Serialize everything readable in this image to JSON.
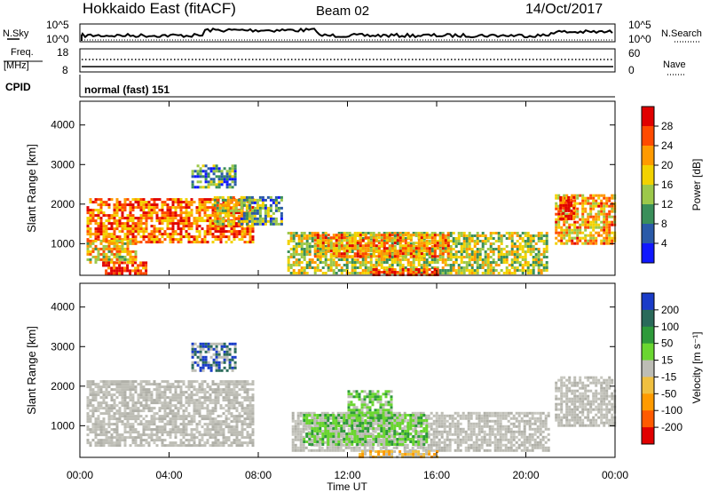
{
  "header": {
    "title": "Hokkaido East (fitACF)",
    "beam": "Beam 02",
    "date": "14/Oct/2017"
  },
  "top_panels": {
    "nsky_label": "N.Sky",
    "nsky_ticks": [
      "10^5",
      "10^0"
    ],
    "nsearch_label": "N.Search",
    "nsearch_ticks": [
      "10^5",
      "10^0"
    ],
    "freq_label": "Freq.",
    "freq_unit": "[MHz]",
    "freq_ticks": [
      "18",
      "8"
    ],
    "nave_label": "Nave",
    "nave_ticks": [
      "60",
      "0"
    ],
    "cpid_label": "CPID",
    "cpid_value": "normal (fast) 151"
  },
  "chart_data": [
    {
      "type": "heatmap",
      "panel": "power",
      "ylabel": "Slant Range [km]",
      "yticks": [
        "4000",
        "3000",
        "2000",
        "1000"
      ],
      "ylim": [
        200,
        4600
      ],
      "xlim": [
        0,
        24
      ],
      "colorbar": {
        "label": "Power [dB]",
        "ticks": [
          "28",
          "24",
          "20",
          "16",
          "12",
          "8",
          "4"
        ],
        "colors": [
          "#e00000",
          "#ff4a00",
          "#ff9a00",
          "#f2d200",
          "#9cc84a",
          "#3a8f5a",
          "#2a5aa8",
          "#1018ff"
        ]
      },
      "bands": [
        {
          "t": [
            0.3,
            7.8
          ],
          "r": [
            1050,
            2150
          ],
          "intensity": 0.75
        },
        {
          "t": [
            0.3,
            2.5
          ],
          "r": [
            500,
            1100
          ],
          "intensity": 0.6
        },
        {
          "t": [
            1.0,
            3.0
          ],
          "r": [
            250,
            550
          ],
          "intensity": 0.85
        },
        {
          "t": [
            6.0,
            7.2
          ],
          "r": [
            1500,
            2200
          ],
          "intensity": 0.55
        },
        {
          "t": [
            7.2,
            9.0
          ],
          "r": [
            1500,
            2200
          ],
          "intensity": 0.35
        },
        {
          "t": [
            9.3,
            21.0
          ],
          "r": [
            250,
            1300
          ],
          "intensity": 0.5
        },
        {
          "t": [
            10.5,
            16.5
          ],
          "r": [
            700,
            1250
          ],
          "intensity": 0.7
        },
        {
          "t": [
            13.0,
            16.0
          ],
          "r": [
            200,
            380
          ],
          "intensity": 0.9
        },
        {
          "t": [
            21.3,
            24.0
          ],
          "r": [
            1000,
            2250
          ],
          "intensity": 0.65
        },
        {
          "t": [
            21.5,
            22.2
          ],
          "r": [
            1600,
            2200
          ],
          "intensity": 0.9
        },
        {
          "t": [
            5.0,
            7.0
          ],
          "r": [
            2400,
            3000
          ],
          "intensity": 0.3
        }
      ]
    },
    {
      "type": "heatmap",
      "panel": "velocity",
      "xlabel": "Time UT",
      "ylabel": "Slant Range [km]",
      "yticks": [
        "4000",
        "3000",
        "2000",
        "1000"
      ],
      "xticks": [
        "00:00",
        "04:00",
        "08:00",
        "12:00",
        "16:00",
        "20:00",
        "00:00"
      ],
      "ylim": [
        200,
        4600
      ],
      "xlim": [
        0,
        24
      ],
      "colorbar": {
        "label": "Velocity [m s⁻¹]",
        "ticks": [
          "200",
          "100",
          "50",
          "15",
          "-15",
          "-50",
          "-100",
          "-200"
        ],
        "colors": [
          "#1a3cc8",
          "#2a6a5a",
          "#2e9a3a",
          "#6ad630",
          "#bdbdb5",
          "#f0c040",
          "#ff9a00",
          "#ff5a00",
          "#e00000"
        ]
      },
      "bands": [
        {
          "t": [
            0.3,
            7.8
          ],
          "r": [
            500,
            2150
          ],
          "vel": "gray"
        },
        {
          "t": [
            9.5,
            21.0
          ],
          "r": [
            400,
            1350
          ],
          "vel": "gray"
        },
        {
          "t": [
            10.0,
            15.5
          ],
          "r": [
            500,
            1300
          ],
          "vel": "green"
        },
        {
          "t": [
            12.0,
            14.0
          ],
          "r": [
            1200,
            1900
          ],
          "vel": "green"
        },
        {
          "t": [
            21.3,
            24.0
          ],
          "r": [
            1000,
            2250
          ],
          "vel": "gray"
        },
        {
          "t": [
            5.0,
            7.0
          ],
          "r": [
            2400,
            3100
          ],
          "vel": "blue"
        },
        {
          "t": [
            12.5,
            16.0
          ],
          "r": [
            200,
            380
          ],
          "vel": "orange"
        }
      ]
    }
  ]
}
